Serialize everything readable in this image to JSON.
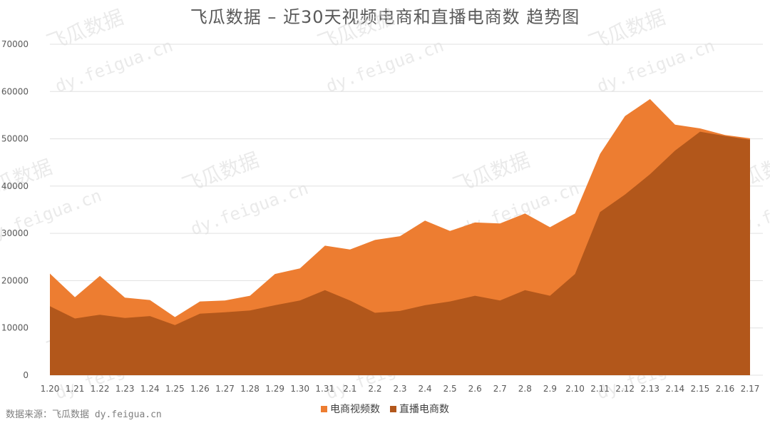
{
  "chart_data": {
    "type": "area",
    "title": "飞瓜数据 – 近30天视频电商和直播电商数 趋势图",
    "categories": [
      "1.20",
      "1.21",
      "1.22",
      "1.23",
      "1.24",
      "1.25",
      "1.26",
      "1.27",
      "1.28",
      "1.29",
      "1.30",
      "1.31",
      "2.1",
      "2.2",
      "2.3",
      "2.4",
      "2.5",
      "2.6",
      "2.7",
      "2.8",
      "2.9",
      "2.10",
      "2.11",
      "2.12",
      "2.13",
      "2.14",
      "2.15",
      "2.16",
      "2.17"
    ],
    "ylim": [
      0,
      70000
    ],
    "yticks": [
      "0",
      "10000",
      "20000",
      "30000",
      "40000",
      "50000",
      "60000",
      "70000"
    ],
    "grid": true,
    "legend_position": "bottom",
    "series": [
      {
        "name": "电商视频数",
        "color": "#ed7d31",
        "values": [
          21500,
          16500,
          21000,
          16400,
          15900,
          12300,
          15600,
          15800,
          16800,
          21400,
          22600,
          27400,
          26600,
          28600,
          29400,
          32700,
          30500,
          32300,
          32100,
          34200,
          31300,
          34200,
          46800,
          54800,
          58400,
          53000,
          52200,
          50800,
          50100
        ]
      },
      {
        "name": "直播电商数",
        "color": "#b2571b",
        "values": [
          14600,
          12000,
          12800,
          12100,
          12500,
          10600,
          13000,
          13300,
          13700,
          14800,
          15800,
          18000,
          15800,
          13200,
          13600,
          14800,
          15600,
          16800,
          15800,
          18000,
          16800,
          21400,
          34500,
          38200,
          42500,
          47500,
          51500,
          50600,
          49800
        ]
      }
    ]
  },
  "watermark": {
    "brand": "飞瓜数据",
    "url": "dy.feigua.cn"
  },
  "source_note": "数据来源：飞瓜数据  dy.feigua.cn"
}
